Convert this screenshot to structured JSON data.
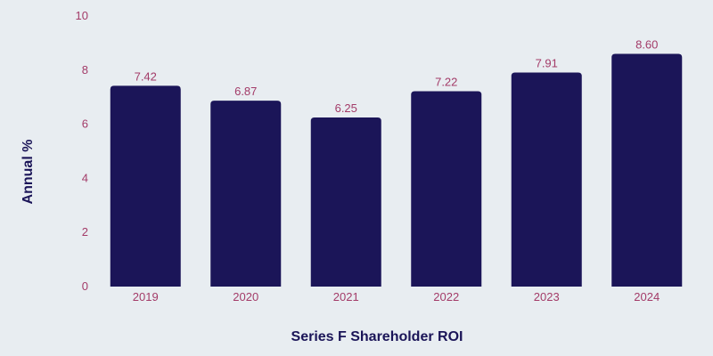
{
  "chart_data": {
    "type": "bar",
    "title": "",
    "xlabel": "Series F Shareholder ROI",
    "ylabel": "Annual %",
    "categories": [
      "2019",
      "2020",
      "2021",
      "2022",
      "2023",
      "2024"
    ],
    "values": [
      7.42,
      6.87,
      6.25,
      7.22,
      7.91,
      8.6
    ],
    "value_labels": [
      "7.42",
      "6.87",
      "6.25",
      "7.22",
      "7.91",
      "8.60"
    ],
    "ylim": [
      0,
      10
    ],
    "yticks": [
      0,
      2,
      4,
      6,
      8,
      10
    ],
    "ytick_labels": [
      "0",
      "2",
      "4",
      "6",
      "8",
      "10"
    ],
    "grid": false,
    "legend": "none",
    "colors": {
      "bar": "#1b1558",
      "tick_text": "#a33b68",
      "data_label": "#a33b68",
      "axis_title": "#1b1558",
      "background": "#e8edf1"
    }
  }
}
